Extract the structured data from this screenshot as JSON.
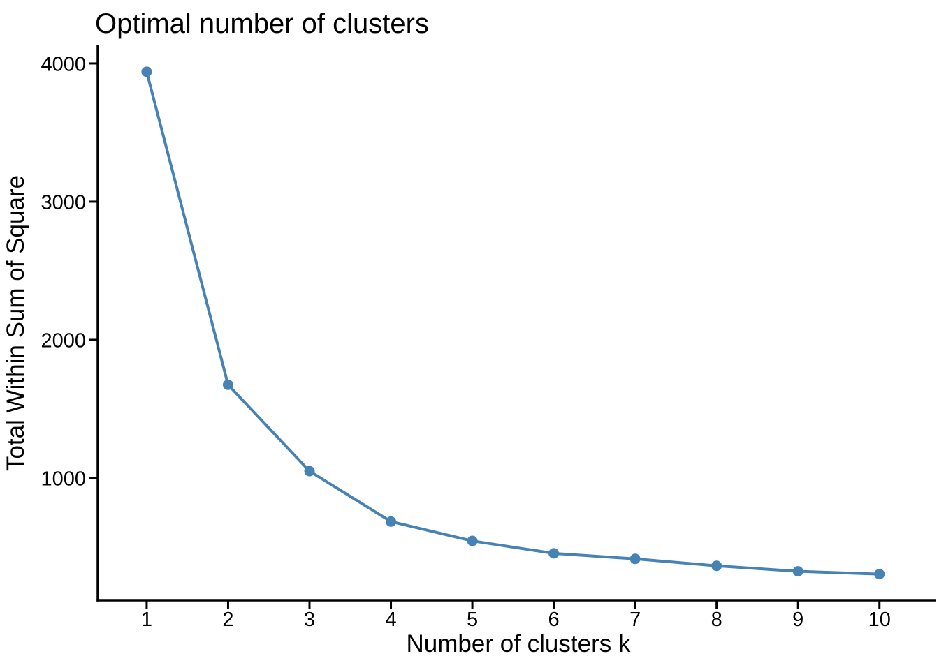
{
  "page": {
    "background": "#ffffff"
  },
  "chart_data": {
    "type": "line",
    "title": "Optimal number of clusters",
    "xlabel": "Number of clusters k",
    "ylabel": "Total Within Sum of Square",
    "x": [
      1,
      2,
      3,
      4,
      5,
      6,
      7,
      8,
      9,
      10
    ],
    "y": [
      3940,
      1675,
      1050,
      685,
      545,
      455,
      415,
      365,
      325,
      305
    ],
    "x_ticks": [
      1,
      2,
      3,
      4,
      5,
      6,
      7,
      8,
      9,
      10
    ],
    "y_ticks": [
      1000,
      2000,
      3000,
      4000
    ],
    "xlim": [
      0.4,
      10.68
    ],
    "ylim": [
      116,
      4126
    ],
    "grid": false,
    "legend": false,
    "marker": "circle",
    "line_color": "#4682B4",
    "axis_color": "#000000",
    "text_color": "#000000"
  }
}
